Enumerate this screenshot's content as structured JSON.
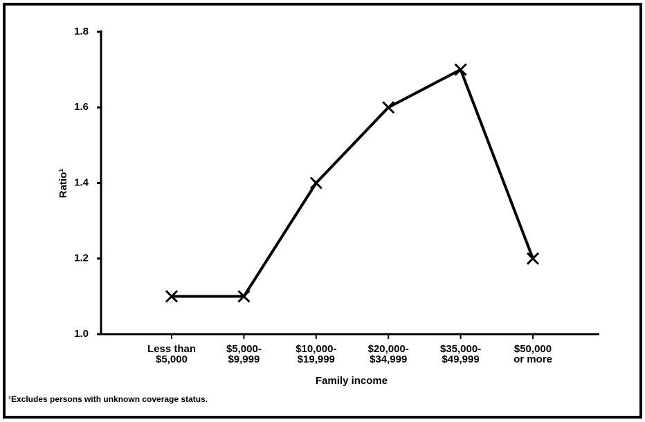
{
  "chart_data": {
    "type": "line",
    "categories": [
      "Less than\n$5,000",
      "$5,000-\n$9,999",
      "$10,000-\n$19,999",
      "$20,000-\n$34,999",
      "$35,000-\n$49,999",
      "$50,000\nor more"
    ],
    "values": [
      1.1,
      1.1,
      1.4,
      1.6,
      1.7,
      1.2
    ],
    "color": "#000000",
    "ylabel": "Ratio¹",
    "xlabel": "Family income",
    "footnote": "¹Excludes persons with unknown coverage status.",
    "ylim": [
      1.0,
      1.8
    ],
    "yticks": [
      {
        "value": 1.0,
        "label": "1.0"
      },
      1.2,
      1.4,
      1.6,
      1.8
    ]
  }
}
